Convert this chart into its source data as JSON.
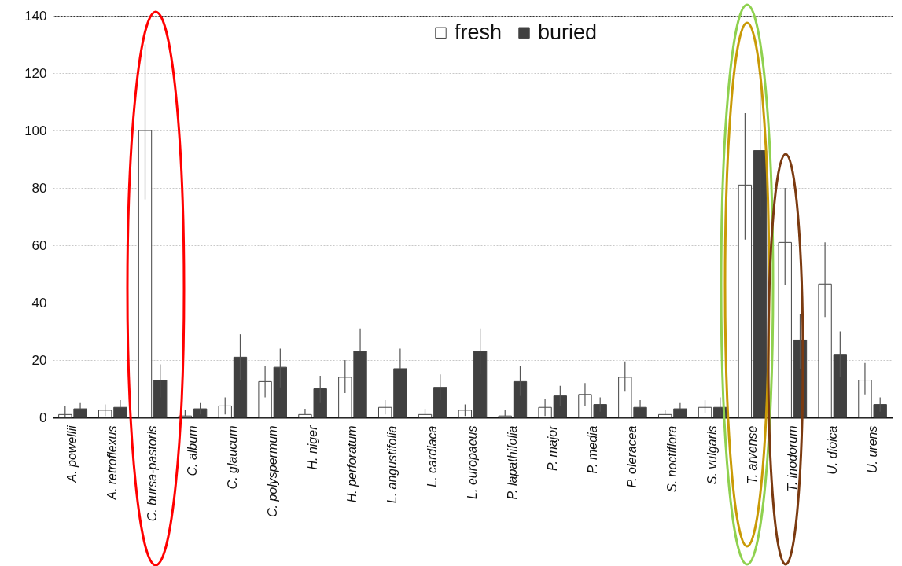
{
  "chart_data": {
    "type": "bar",
    "categories": [
      "A. powellii",
      "A. retroflexus",
      "C. bursa-pastoris",
      "C. album",
      "C. glaucum",
      "C. polyspermum",
      "H. niger",
      "H. perforatum",
      "L. angustifolia",
      "L. cardiaca",
      "L. europaeus",
      "P. lapathifolia",
      "P. major",
      "P. media",
      "P. oleracea",
      "S. noctiflora",
      "S. vulgaris",
      "T. arvense",
      "T. inodorum",
      "U. dioica",
      "U. urens"
    ],
    "series": [
      {
        "name": "fresh",
        "color": "#ffffff",
        "values": [
          1,
          2.5,
          100,
          0.5,
          4,
          12.5,
          1,
          14,
          3.5,
          1,
          2.5,
          0.5,
          3.5,
          8,
          14,
          1,
          3.5,
          81,
          61,
          46.5,
          13
        ],
        "errors": [
          [
            0,
            4
          ],
          [
            0.5,
            4.5
          ],
          [
            76,
            130
          ],
          [
            0.5,
            2.5
          ],
          [
            1,
            7
          ],
          [
            7,
            18
          ],
          [
            1,
            3
          ],
          [
            8.5,
            20
          ],
          [
            1,
            6
          ],
          [
            1,
            3
          ],
          [
            0.5,
            4.5
          ],
          [
            0.5,
            2.5
          ],
          [
            0.5,
            6.5
          ],
          [
            4,
            12
          ],
          [
            9,
            19.5
          ],
          [
            1,
            2.5
          ],
          [
            1.5,
            6
          ],
          [
            62,
            106
          ],
          [
            46,
            80
          ],
          [
            35,
            61
          ],
          [
            8,
            19
          ]
        ]
      },
      {
        "name": "buried",
        "color": "#404040",
        "values": [
          3,
          3.5,
          13,
          3,
          21,
          17.5,
          10,
          23,
          17,
          10.5,
          23,
          12.5,
          7.5,
          4.5,
          3.5,
          3,
          3.5,
          93,
          27,
          22,
          4.5
        ],
        "errors": [
          [
            3,
            5
          ],
          [
            3.5,
            6
          ],
          [
            7,
            18.5
          ],
          [
            1,
            5
          ],
          [
            13,
            29
          ],
          [
            10.5,
            24
          ],
          [
            5,
            14.5
          ],
          [
            23,
            31
          ],
          [
            17,
            24
          ],
          [
            6,
            15
          ],
          [
            15,
            31
          ],
          [
            7.5,
            18
          ],
          [
            4,
            11
          ],
          [
            2,
            7
          ],
          [
            3.5,
            6
          ],
          [
            3,
            5
          ],
          [
            0,
            7
          ],
          [
            70,
            120
          ],
          [
            17,
            36
          ],
          [
            14,
            30
          ],
          [
            2,
            7
          ]
        ]
      }
    ],
    "ylim": [
      0,
      140
    ],
    "yticks": [
      0,
      20,
      40,
      60,
      80,
      100,
      120,
      140
    ],
    "grid": "y",
    "legend": "top"
  }
}
